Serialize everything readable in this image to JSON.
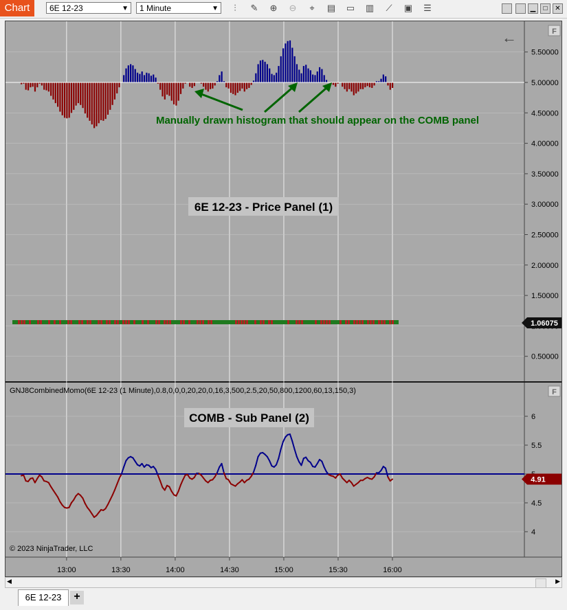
{
  "toolbar": {
    "badge": "Chart",
    "instrument": "6E 12-23",
    "interval": "1 Minute"
  },
  "price_panel": {
    "annotation": "Manually drawn histogram that should appear on the COMB panel",
    "label": "6E 12-23 - Price Panel (1)",
    "y_ticks": [
      "5.50000",
      "5.00000",
      "4.50000",
      "4.00000",
      "3.50000",
      "3.00000",
      "2.50000",
      "2.00000",
      "1.50000",
      "1.00000",
      "0.50000"
    ],
    "last_price": "1.06075",
    "f_badge": "F"
  },
  "sub_panel": {
    "indicator_label": "GNJ8CombinedMomo(6E 12-23 (1 Minute),0.8,0,0,0,20,20,0,16,3,500,2.5,20,50,800,1200,60,13,150,3)",
    "label": "COMB - Sub Panel (2)",
    "y_ticks": [
      "6",
      "5.5",
      "5",
      "4.5",
      "4"
    ],
    "last_value": "4.91",
    "copyright": "© 2023 NinjaTrader, LLC",
    "f_badge": "F"
  },
  "x_ticks": [
    "13:00",
    "13:30",
    "14:00",
    "14:30",
    "15:00",
    "15:30",
    "16:00"
  ],
  "tabs": [
    {
      "label": "6E 12-23"
    }
  ],
  "colors": {
    "positive": "#00008b",
    "negative": "#8b0000",
    "zero_line": "#00008b",
    "annotation": "#006400",
    "background": "#a9a9a9"
  },
  "chart_data": {
    "type": "line",
    "x_range": [
      "12:35",
      "16:00"
    ],
    "series": [
      {
        "values": [
          4.97,
          4.98,
          4.88,
          4.87,
          4.92,
          4.93,
          4.85,
          4.92,
          4.98,
          4.95,
          4.88,
          4.87,
          4.85,
          4.78,
          4.72,
          4.66,
          4.6,
          4.52,
          4.46,
          4.42,
          4.41,
          4.42,
          4.5,
          4.55,
          4.62,
          4.66,
          4.63,
          4.58,
          4.49,
          4.42,
          4.37,
          4.31,
          4.25,
          4.28,
          4.33,
          4.38,
          4.37,
          4.4,
          4.47,
          4.55,
          4.63,
          4.72,
          4.82,
          4.92,
          5.0,
          5.12,
          5.23,
          5.28,
          5.3,
          5.28,
          5.22,
          5.16,
          5.14,
          5.18,
          5.12,
          5.16,
          5.15,
          5.11,
          5.13,
          5.08,
          4.98,
          4.88,
          4.77,
          4.72,
          4.8,
          4.78,
          4.7,
          4.64,
          4.62,
          4.7,
          4.81,
          4.9,
          4.98,
          4.99,
          4.93,
          4.91,
          4.94,
          5.01,
          5.01,
          4.98,
          4.93,
          4.88,
          4.85,
          4.89,
          4.9,
          4.95,
          5.02,
          5.12,
          5.18,
          5.02,
          4.92,
          4.9,
          4.83,
          4.81,
          4.79,
          4.83,
          4.86,
          4.9,
          4.85,
          4.89,
          4.91,
          4.96,
          5.03,
          5.15,
          5.3,
          5.36,
          5.37,
          5.34,
          5.3,
          5.23,
          5.14,
          5.12,
          5.16,
          5.27,
          5.43,
          5.56,
          5.64,
          5.68,
          5.69,
          5.57,
          5.43,
          5.3,
          5.21,
          5.15,
          5.27,
          5.29,
          5.23,
          5.2,
          5.13,
          5.12,
          5.18,
          5.25,
          5.22,
          5.12,
          5.04,
          4.99,
          4.97,
          4.96,
          4.93,
          4.98,
          5.0,
          4.93,
          4.89,
          4.85,
          4.89,
          4.85,
          4.79,
          4.82,
          4.85,
          4.89,
          4.89,
          4.92,
          4.94,
          4.92,
          4.91,
          4.95,
          5.02,
          5.02,
          5.06,
          5.13,
          5.1,
          4.95,
          4.88,
          4.91
        ]
      }
    ],
    "ylim": [
      3.7,
      6.5
    ],
    "zero_line": 5.0,
    "last_value": 4.91
  }
}
